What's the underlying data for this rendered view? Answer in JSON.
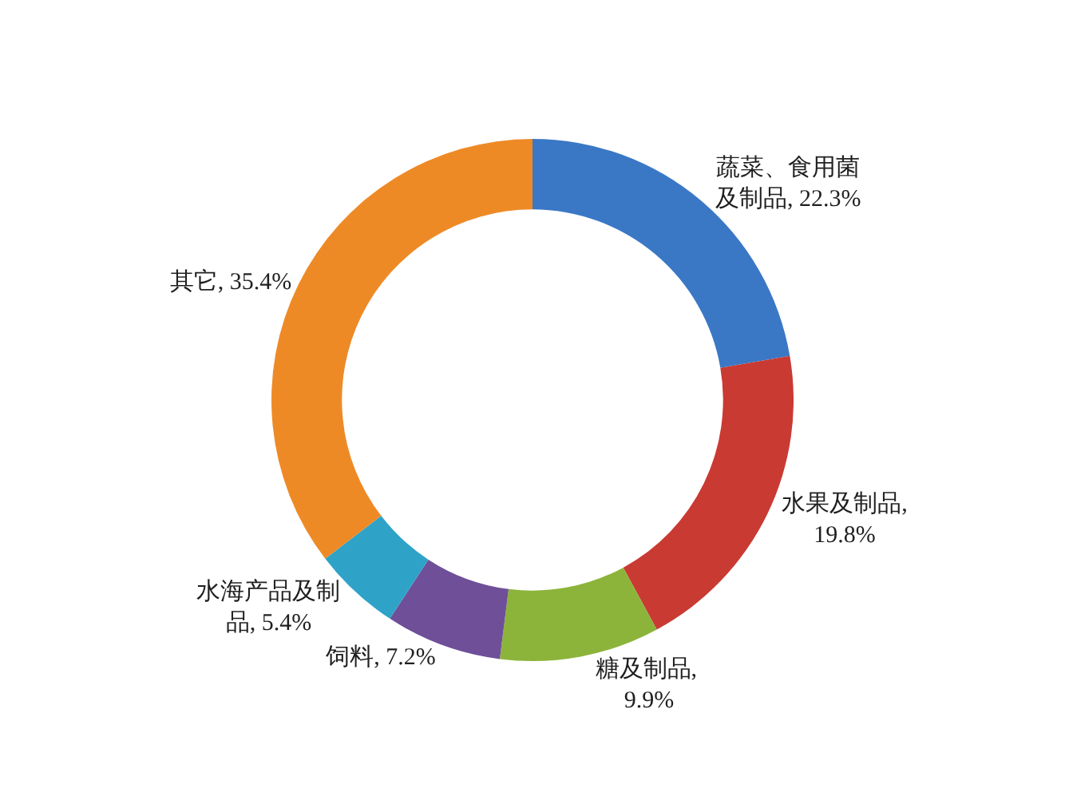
{
  "chart_data": {
    "type": "donut",
    "categories": [
      "蔬菜、食用菌及制品, 22.3%",
      "水果及制品, 19.8%",
      "糖及制品, 9.9%",
      "饲料, 7.2%",
      "水海产品及制品, 5.4%",
      "其它, 35.4%"
    ],
    "values": [
      22.3,
      19.8,
      9.9,
      7.2,
      5.4,
      35.4
    ],
    "colors": [
      "#3a78c6",
      "#c93a33",
      "#8cb43a",
      "#6e4f98",
      "#2fa2c8",
      "#ee8a26"
    ],
    "legend": false
  }
}
